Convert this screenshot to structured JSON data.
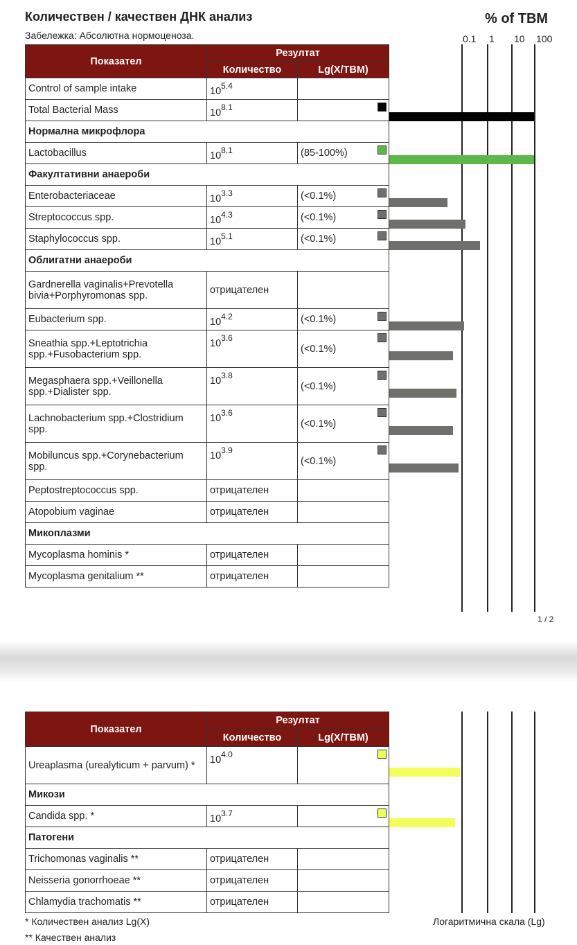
{
  "title": "Количествен / качествен ДНК анализ",
  "note": "Забележка: Абсолютна нормоценоза.",
  "scale_title": "% of TBM",
  "scale_ticks": [
    "0.1",
    "1",
    "10",
    "100"
  ],
  "header": {
    "indicator": "Показател",
    "result": "Резултат",
    "quantity": "Количество",
    "lg": "Lg(X/TBM)"
  },
  "colors": {
    "header": "#7d1510",
    "tbm": "#000000",
    "normal": "#5cb84a",
    "opportunistic": "#6f6f6b",
    "ureaplasma_candida": "#f2ff5a"
  },
  "page1_rows": [
    {
      "type": "data",
      "name": "Control of sample intake",
      "base": "10",
      "exp": "5.4"
    },
    {
      "type": "data",
      "name": "Total Bacterial Mass",
      "base": "10",
      "exp": "8.1",
      "bar": "tbm"
    },
    {
      "type": "section",
      "name": "Нормална микрофлора"
    },
    {
      "type": "data",
      "name": "Lactobacillus",
      "base": "10",
      "exp": "8.1",
      "lg": "(85-100%)",
      "bar": "normal"
    },
    {
      "type": "section",
      "name": "Факултативни анаероби"
    },
    {
      "type": "data",
      "name": "Enterobacteriaceae",
      "base": "10",
      "exp": "3.3",
      "lg": "(<0.1%)",
      "bar": "opportunistic"
    },
    {
      "type": "data",
      "name": "Streptococcus spp.",
      "base": "10",
      "exp": "4.3",
      "lg": "(<0.1%)",
      "bar": "opportunistic"
    },
    {
      "type": "data",
      "name": "Staphylococcus spp.",
      "base": "10",
      "exp": "5.1",
      "lg": "(<0.1%)",
      "bar": "opportunistic"
    },
    {
      "type": "section",
      "name": "Облигатни анаероби"
    },
    {
      "type": "data",
      "name": "Gardnerella vaginalis+Prevotella bivia+Porphyromonas spp.",
      "neg": "отрицателен",
      "tall": true
    },
    {
      "type": "data",
      "name": "Eubacterium spp.",
      "base": "10",
      "exp": "4.2",
      "lg": "(<0.1%)",
      "bar": "opportunistic"
    },
    {
      "type": "data",
      "name": "Sneathia spp.+Leptotrichia spp.+Fusobacterium spp.",
      "base": "10",
      "exp": "3.6",
      "lg": "(<0.1%)",
      "bar": "opportunistic",
      "tall": true
    },
    {
      "type": "data",
      "name": "Megasphaera spp.+Veillonella spp.+Dialister spp.",
      "base": "10",
      "exp": "3.8",
      "lg": "(<0.1%)",
      "bar": "opportunistic",
      "tall": true
    },
    {
      "type": "data",
      "name": "Lachnobacterium spp.+Clostridium spp.",
      "base": "10",
      "exp": "3.6",
      "lg": "(<0.1%)",
      "bar": "opportunistic",
      "tall": true
    },
    {
      "type": "data",
      "name": "Mobiluncus spp.+Corynebacterium spp.",
      "base": "10",
      "exp": "3.9",
      "lg": "(<0.1%)",
      "bar": "opportunistic",
      "tall": true
    },
    {
      "type": "data",
      "name": "Peptostreptococcus spp.",
      "neg": "отрицателен"
    },
    {
      "type": "data",
      "name": "Atopobium vaginae",
      "neg": "отрицателен"
    },
    {
      "type": "section",
      "name": "Микоплазми"
    },
    {
      "type": "data",
      "name": "Mycoplasma hominis *",
      "neg": "отрицателен"
    },
    {
      "type": "data",
      "name": "Mycoplasma genitalium **",
      "neg": "отрицателен"
    }
  ],
  "page_number": "1 / 2",
  "page2_rows": [
    {
      "type": "data",
      "name": "Ureaplasma (urealyticum + parvum) *",
      "base": "10",
      "exp": "4.0",
      "bar": "ureaplasma_candida",
      "tall": true
    },
    {
      "type": "section",
      "name": "Микози"
    },
    {
      "type": "data",
      "name": "Candida spp. *",
      "base": "10",
      "exp": "3.7",
      "bar": "ureaplasma_candida"
    },
    {
      "type": "section",
      "name": "Патогени"
    },
    {
      "type": "data",
      "name": "Trichomonas vaginalis **",
      "neg": "отрицателен"
    },
    {
      "type": "data",
      "name": "Neisseria gonorrhoeae **",
      "neg": "отрицателен"
    },
    {
      "type": "data",
      "name": "Chlamydia trachomatis **",
      "neg": "отрицателен"
    }
  ],
  "footnotes": [
    "* Количествен анализ Lg(X)",
    "** Качествен анализ"
  ],
  "scale_caption": "Логаритмична скала (Lg)"
}
